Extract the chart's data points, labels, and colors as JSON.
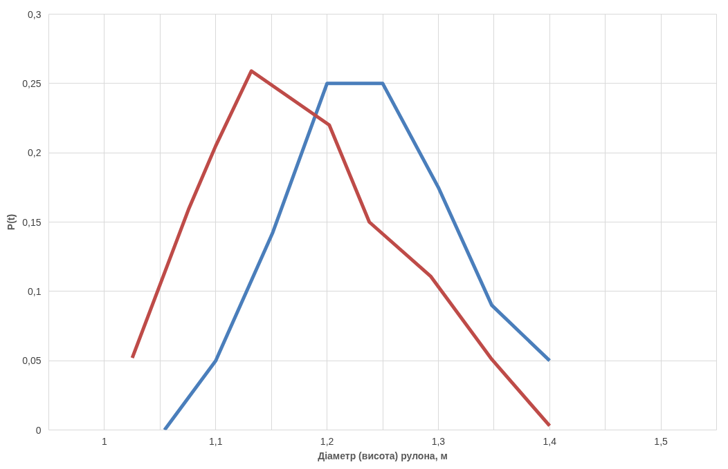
{
  "chart_data": {
    "type": "line",
    "xlabel": "Діаметр (висота) рулона, м",
    "ylabel": "P(t)",
    "xlim": [
      0.95,
      1.55
    ],
    "ylim": [
      0,
      0.3
    ],
    "xticks": [
      1,
      {
        "value": 1.05,
        "label": null
      },
      {
        "value": 1.1,
        "label": "1,1"
      },
      {
        "value": 1.15,
        "label": null
      },
      {
        "value": 1.2,
        "label": "1,2"
      },
      {
        "value": 1.25,
        "label": null
      },
      {
        "value": 1.3,
        "label": "1,3"
      },
      {
        "value": 1.35,
        "label": null
      },
      {
        "value": 1.4,
        "label": "1,4"
      },
      {
        "value": 1.45,
        "label": null
      },
      {
        "value": 1.5,
        "label": "1,5"
      }
    ],
    "yticks": [
      0,
      {
        "value": 0.05,
        "label": "0,05"
      },
      {
        "value": 0.1,
        "label": "0,1"
      },
      {
        "value": 0.15,
        "label": "0,15"
      },
      {
        "value": 0.2,
        "label": "0,2"
      },
      {
        "value": 0.25,
        "label": "0,25"
      },
      {
        "value": 0.3,
        "label": "0,3"
      }
    ],
    "grid": true,
    "line_style": "solid",
    "marker": "none",
    "series": [
      {
        "color": "#4a7ebb",
        "x": [
          1.054,
          1.1,
          1.151,
          1.2,
          1.25,
          1.3,
          1.348,
          1.4
        ],
        "values": [
          0,
          0.05,
          0.142,
          0.25,
          0.25,
          0.175,
          0.09,
          0.05
        ]
      },
      {
        "color": "#be4b48",
        "x": [
          1.025,
          1.076,
          1.1,
          1.132,
          1.202,
          1.238,
          1.293,
          1.348,
          1.4
        ],
        "values": [
          0.052,
          0.16,
          0.205,
          0.259,
          0.22,
          0.15,
          0.111,
          0.051,
          0.003
        ]
      }
    ]
  }
}
